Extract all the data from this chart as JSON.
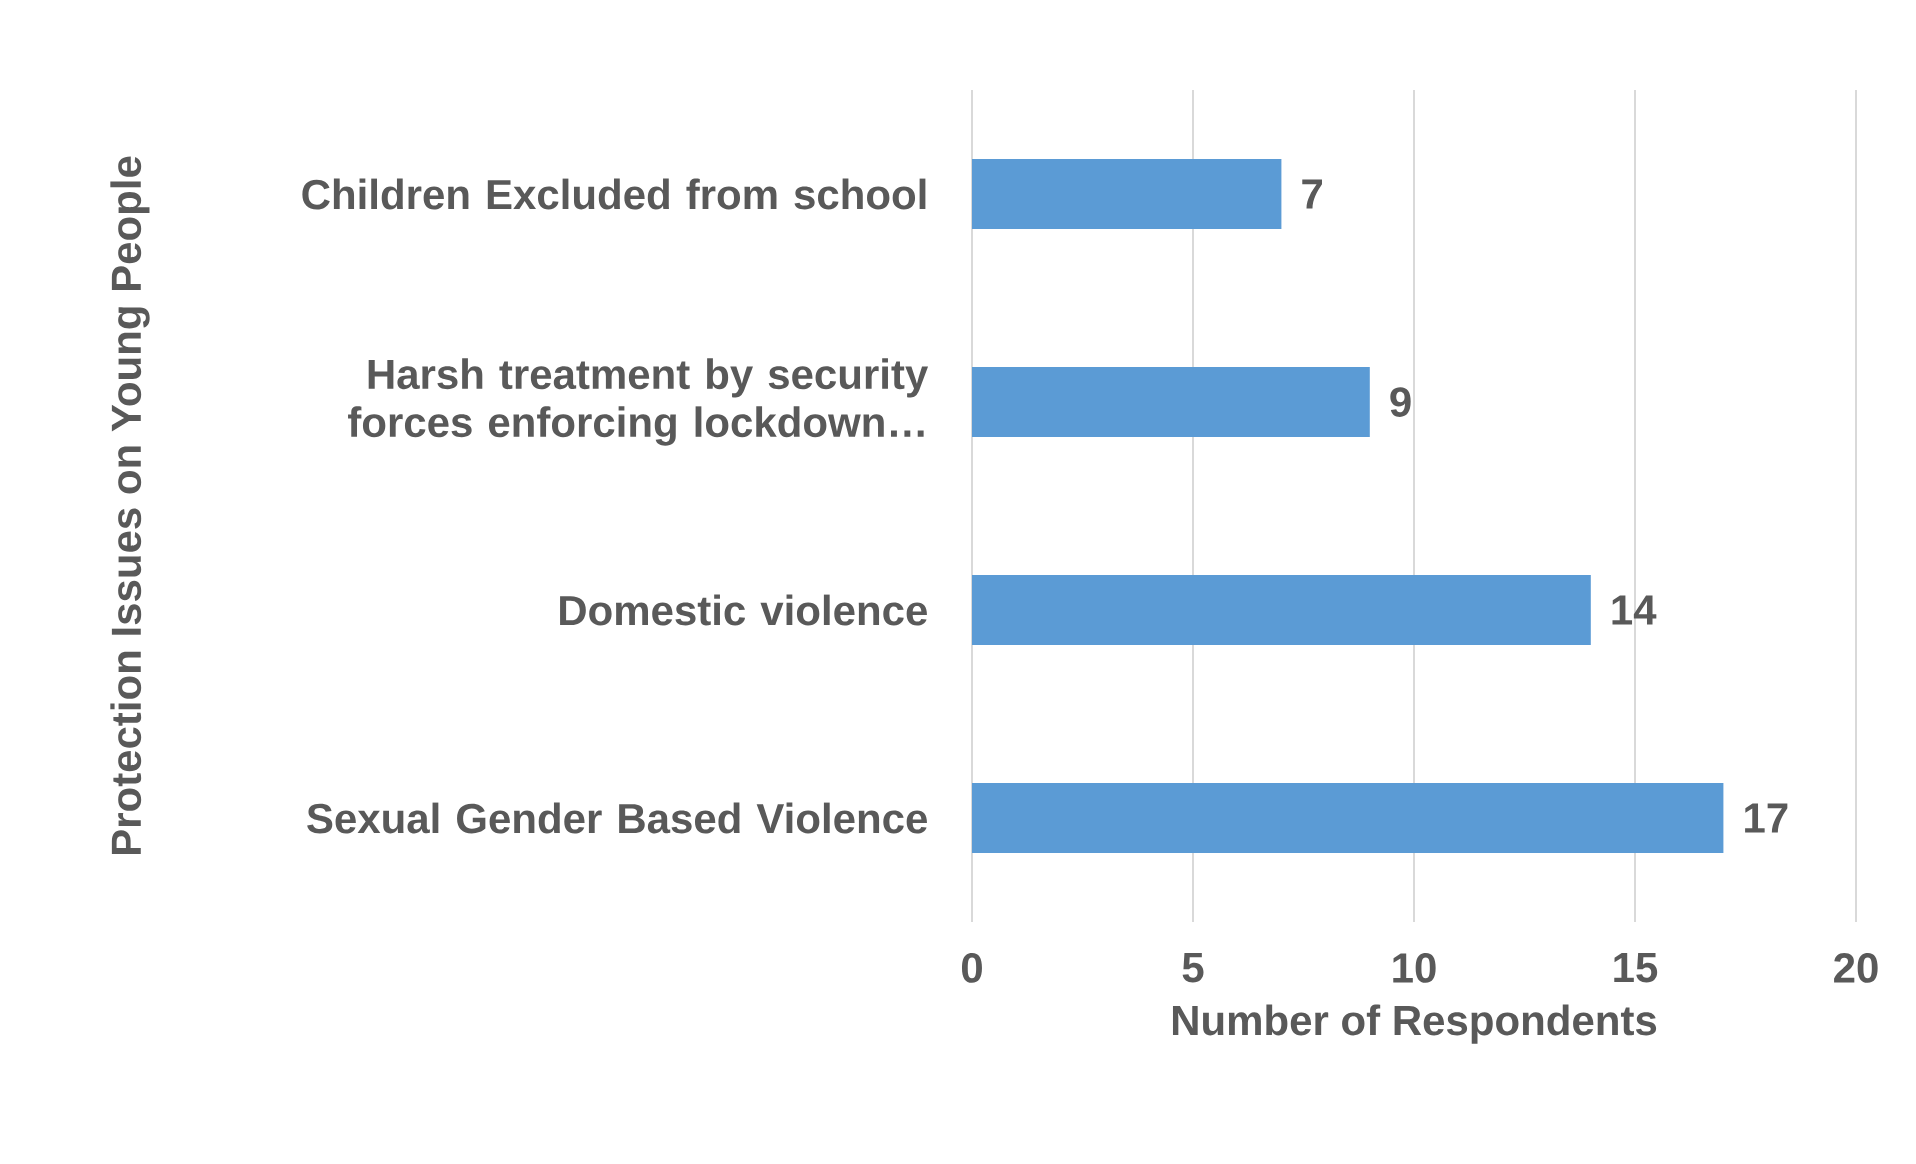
{
  "chart_data": {
    "type": "bar",
    "orientation": "horizontal",
    "categories": [
      "Children Excluded from school",
      "Harsh treatment by security forces enforcing lockdown…",
      "Domestic violence",
      "Sexual Gender Based Violence"
    ],
    "values": [
      7,
      9,
      14,
      17
    ],
    "color": "#5b9bd5",
    "xlim": [
      0,
      20
    ],
    "xticks": [
      0,
      5,
      10,
      15,
      20
    ],
    "grid": "x",
    "data_labels": true,
    "xlabel": "Number of Respondents",
    "ylabel": "Protection Issues on Young People"
  }
}
